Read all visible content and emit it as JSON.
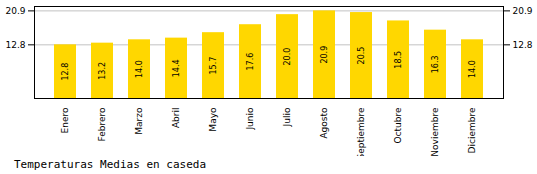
{
  "chart_data": {
    "type": "bar",
    "title": "Temperaturas Medias en caseda",
    "categories": [
      "Enero",
      "Febrero",
      "Marzo",
      "Abril",
      "Mayo",
      "Junio",
      "Julio",
      "Agosto",
      "Septiembre",
      "Octubre",
      "Noviembre",
      "Diciembre"
    ],
    "values": [
      12.8,
      13.2,
      14.0,
      14.4,
      15.7,
      17.6,
      20.0,
      20.9,
      20.5,
      18.5,
      16.3,
      14.0
    ],
    "value_labels": [
      "12.8",
      "13.2",
      "14.0",
      "14.4",
      "15.7",
      "17.6",
      "20.0",
      "20.9",
      "20.5",
      "18.5",
      "16.3",
      "14.0"
    ],
    "color": "#FFD700",
    "ylim": [
      0,
      21.945
    ],
    "yticks": [
      12.8,
      20.9
    ],
    "grid": true,
    "data_labels": true
  }
}
